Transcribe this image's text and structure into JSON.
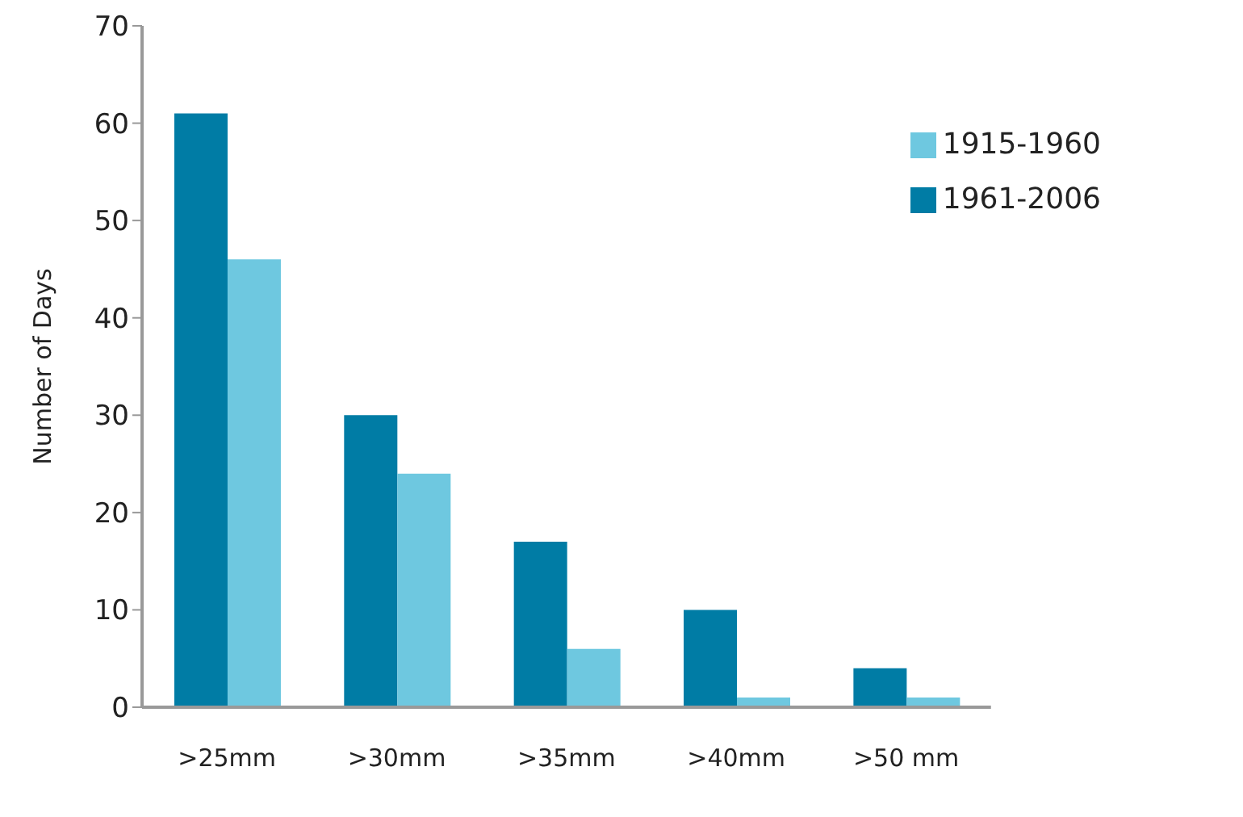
{
  "chart_data": {
    "type": "bar",
    "ylabel": "Number of Days",
    "categories": [
      ">25mm",
      ">30mm",
      ">35mm",
      ">40mm",
      ">50 mm"
    ],
    "series": [
      {
        "name": "1961-2006",
        "color": "#007ca5",
        "values": [
          61,
          30,
          17,
          10,
          4
        ]
      },
      {
        "name": "1915-1960",
        "color": "#6ec8e0",
        "values": [
          46,
          24,
          6,
          1,
          1
        ]
      }
    ],
    "ylim": [
      0,
      70
    ],
    "yticks": [
      0,
      10,
      20,
      30,
      40,
      50,
      60,
      70
    ],
    "grid": false,
    "legend": "top right"
  }
}
